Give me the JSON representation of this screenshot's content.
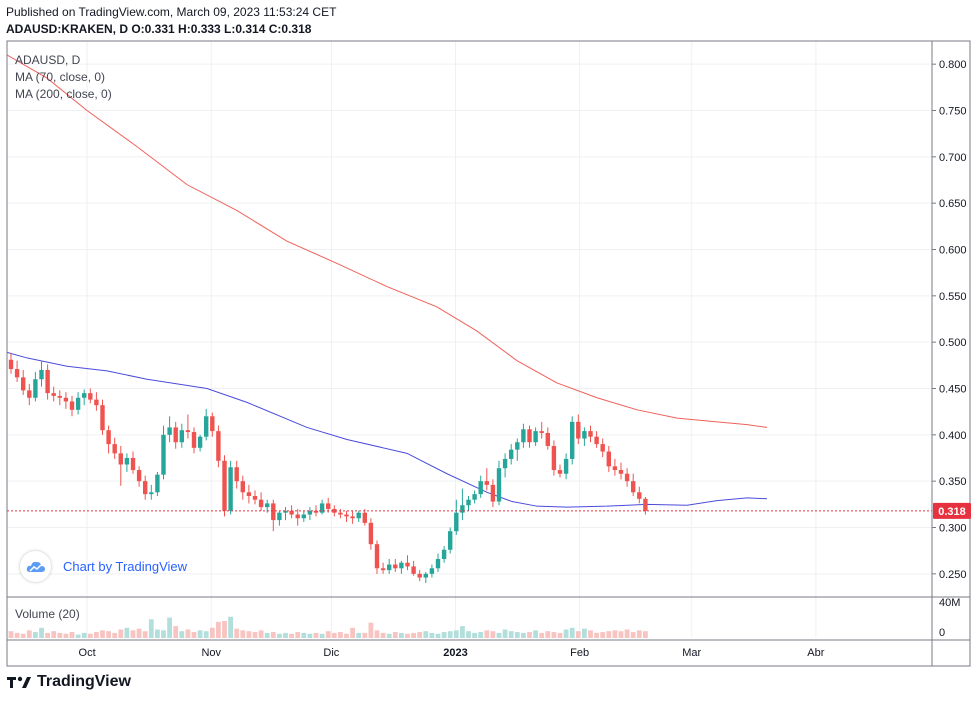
{
  "header": {
    "published": "Published on TradingView.com, March 09, 2023 11:53:24 CET",
    "ohlc": "ADAUSD:KRAKEN, D O:0.331 H:0.333 L:0.314 C:0.318"
  },
  "legend": {
    "symbol": "ADAUSD, D",
    "ma70": "MA (70, close, 0)",
    "ma200": "MA (200, close, 0)"
  },
  "badge": {
    "text": "Chart by TradingView",
    "icon": "tradingview-cloud-icon"
  },
  "volume": {
    "label": "Volume (20)"
  },
  "footer": {
    "brand": "TradingView",
    "icon": "tradingview-logo-icon"
  },
  "colors": {
    "up": "#26a69a",
    "down": "#ef5350",
    "ma70": "#4b4bdc",
    "ma200": "#f0605a",
    "last": "#e8313f"
  },
  "chart_data": {
    "type": "candlestick",
    "symbol": "ADAUSD",
    "price_axis": {
      "min": 0.225,
      "max": 0.825,
      "ticks": [
        "0.250",
        "0.300",
        "0.350",
        "0.400",
        "0.450",
        "0.500",
        "0.550",
        "0.600",
        "0.650",
        "0.700",
        "0.750",
        "0.800"
      ]
    },
    "time_axis": {
      "labels": [
        {
          "text": "Oct",
          "date": "2022-10-01"
        },
        {
          "text": "Nov",
          "date": "2022-11-01"
        },
        {
          "text": "Dic",
          "date": "2022-12-01"
        },
        {
          "text": "2023",
          "date": "2023-01-01"
        },
        {
          "text": "Feb",
          "date": "2023-02-01"
        },
        {
          "text": "Mar",
          "date": "2023-03-01"
        },
        {
          "text": "Abr",
          "date": "2023-04-01"
        }
      ],
      "start": "2022-09-11",
      "end": "2023-04-30"
    },
    "last_price": {
      "value": 0.318,
      "label": "0.318"
    },
    "volume_axis": {
      "ticks": [
        "40M",
        "0"
      ],
      "max": 40
    },
    "ohlc": [
      [
        0.481,
        0.488,
        0.466,
        0.471
      ],
      [
        0.471,
        0.48,
        0.457,
        0.462
      ],
      [
        0.462,
        0.47,
        0.443,
        0.448
      ],
      [
        0.448,
        0.455,
        0.432,
        0.44
      ],
      [
        0.44,
        0.468,
        0.436,
        0.46
      ],
      [
        0.46,
        0.48,
        0.452,
        0.47
      ],
      [
        0.47,
        0.476,
        0.438,
        0.445
      ],
      [
        0.445,
        0.452,
        0.436,
        0.442
      ],
      [
        0.442,
        0.448,
        0.432,
        0.44
      ],
      [
        0.44,
        0.446,
        0.428,
        0.436
      ],
      [
        0.436,
        0.442,
        0.42,
        0.427
      ],
      [
        0.427,
        0.446,
        0.422,
        0.44
      ],
      [
        0.44,
        0.449,
        0.432,
        0.445
      ],
      [
        0.445,
        0.45,
        0.434,
        0.438
      ],
      [
        0.438,
        0.446,
        0.426,
        0.432
      ],
      [
        0.432,
        0.438,
        0.4,
        0.405
      ],
      [
        0.405,
        0.41,
        0.38,
        0.39
      ],
      [
        0.39,
        0.397,
        0.374,
        0.38
      ],
      [
        0.38,
        0.388,
        0.345,
        0.368
      ],
      [
        0.368,
        0.38,
        0.36,
        0.375
      ],
      [
        0.375,
        0.382,
        0.358,
        0.362
      ],
      [
        0.362,
        0.366,
        0.344,
        0.35
      ],
      [
        0.35,
        0.356,
        0.33,
        0.336
      ],
      [
        0.336,
        0.346,
        0.33,
        0.338
      ],
      [
        0.338,
        0.36,
        0.334,
        0.357
      ],
      [
        0.357,
        0.41,
        0.352,
        0.4
      ],
      [
        0.4,
        0.42,
        0.392,
        0.408
      ],
      [
        0.408,
        0.414,
        0.385,
        0.392
      ],
      [
        0.392,
        0.412,
        0.386,
        0.405
      ],
      [
        0.405,
        0.422,
        0.396,
        0.403
      ],
      [
        0.403,
        0.408,
        0.38,
        0.386
      ],
      [
        0.386,
        0.4,
        0.382,
        0.398
      ],
      [
        0.398,
        0.428,
        0.394,
        0.42
      ],
      [
        0.42,
        0.424,
        0.398,
        0.404
      ],
      [
        0.404,
        0.41,
        0.365,
        0.372
      ],
      [
        0.372,
        0.378,
        0.312,
        0.318
      ],
      [
        0.318,
        0.372,
        0.314,
        0.365
      ],
      [
        0.365,
        0.372,
        0.342,
        0.35
      ],
      [
        0.35,
        0.356,
        0.33,
        0.338
      ],
      [
        0.338,
        0.346,
        0.326,
        0.334
      ],
      [
        0.334,
        0.34,
        0.325,
        0.33
      ],
      [
        0.33,
        0.338,
        0.318,
        0.322
      ],
      [
        0.322,
        0.33,
        0.316,
        0.326
      ],
      [
        0.326,
        0.33,
        0.296,
        0.308
      ],
      [
        0.308,
        0.318,
        0.302,
        0.316
      ],
      [
        0.316,
        0.322,
        0.308,
        0.318
      ],
      [
        0.318,
        0.324,
        0.31,
        0.314
      ],
      [
        0.314,
        0.32,
        0.302,
        0.31
      ],
      [
        0.31,
        0.318,
        0.306,
        0.314
      ],
      [
        0.314,
        0.322,
        0.308,
        0.318
      ],
      [
        0.318,
        0.324,
        0.312,
        0.316
      ],
      [
        0.316,
        0.33,
        0.314,
        0.326
      ],
      [
        0.326,
        0.332,
        0.316,
        0.32
      ],
      [
        0.32,
        0.324,
        0.312,
        0.316
      ],
      [
        0.316,
        0.32,
        0.31,
        0.314
      ],
      [
        0.314,
        0.318,
        0.306,
        0.312
      ],
      [
        0.312,
        0.318,
        0.304,
        0.31
      ],
      [
        0.31,
        0.318,
        0.306,
        0.316
      ],
      [
        0.316,
        0.32,
        0.302,
        0.305
      ],
      [
        0.305,
        0.31,
        0.276,
        0.282
      ],
      [
        0.282,
        0.286,
        0.25,
        0.256
      ],
      [
        0.256,
        0.262,
        0.25,
        0.254
      ],
      [
        0.254,
        0.266,
        0.25,
        0.26
      ],
      [
        0.26,
        0.266,
        0.252,
        0.256
      ],
      [
        0.256,
        0.264,
        0.25,
        0.262
      ],
      [
        0.262,
        0.27,
        0.254,
        0.258
      ],
      [
        0.258,
        0.264,
        0.248,
        0.25
      ],
      [
        0.25,
        0.254,
        0.242,
        0.246
      ],
      [
        0.246,
        0.252,
        0.24,
        0.25
      ],
      [
        0.25,
        0.26,
        0.246,
        0.256
      ],
      [
        0.256,
        0.272,
        0.252,
        0.266
      ],
      [
        0.266,
        0.28,
        0.262,
        0.276
      ],
      [
        0.276,
        0.3,
        0.272,
        0.296
      ],
      [
        0.296,
        0.33,
        0.292,
        0.316
      ],
      [
        0.316,
        0.342,
        0.308,
        0.324
      ],
      [
        0.324,
        0.334,
        0.318,
        0.33
      ],
      [
        0.33,
        0.34,
        0.326,
        0.336
      ],
      [
        0.336,
        0.356,
        0.332,
        0.35
      ],
      [
        0.35,
        0.364,
        0.34,
        0.346
      ],
      [
        0.346,
        0.352,
        0.322,
        0.328
      ],
      [
        0.328,
        0.372,
        0.324,
        0.364
      ],
      [
        0.364,
        0.38,
        0.354,
        0.374
      ],
      [
        0.374,
        0.39,
        0.368,
        0.384
      ],
      [
        0.384,
        0.396,
        0.372,
        0.392
      ],
      [
        0.392,
        0.412,
        0.386,
        0.406
      ],
      [
        0.406,
        0.41,
        0.386,
        0.392
      ],
      [
        0.392,
        0.408,
        0.388,
        0.404
      ],
      [
        0.404,
        0.414,
        0.396,
        0.402
      ],
      [
        0.402,
        0.408,
        0.384,
        0.388
      ],
      [
        0.388,
        0.394,
        0.356,
        0.362
      ],
      [
        0.362,
        0.368,
        0.354,
        0.358
      ],
      [
        0.358,
        0.38,
        0.352,
        0.374
      ],
      [
        0.374,
        0.42,
        0.368,
        0.414
      ],
      [
        0.414,
        0.422,
        0.39,
        0.396
      ],
      [
        0.396,
        0.408,
        0.388,
        0.404
      ],
      [
        0.404,
        0.41,
        0.392,
        0.398
      ],
      [
        0.398,
        0.404,
        0.386,
        0.39
      ],
      [
        0.39,
        0.396,
        0.376,
        0.382
      ],
      [
        0.382,
        0.388,
        0.36,
        0.366
      ],
      [
        0.366,
        0.374,
        0.356,
        0.362
      ],
      [
        0.362,
        0.37,
        0.352,
        0.358
      ],
      [
        0.358,
        0.364,
        0.344,
        0.35
      ],
      [
        0.35,
        0.358,
        0.334,
        0.338
      ],
      [
        0.338,
        0.344,
        0.326,
        0.331
      ],
      [
        0.331,
        0.333,
        0.314,
        0.318
      ]
    ],
    "volume": [
      8,
      6,
      5,
      9,
      7,
      12,
      6,
      8,
      6,
      5,
      7,
      4,
      6,
      5,
      7,
      9,
      8,
      6,
      10,
      12,
      9,
      11,
      8,
      22,
      10,
      9,
      24,
      14,
      8,
      10,
      7,
      9,
      8,
      12,
      19,
      20,
      25,
      11,
      9,
      8,
      7,
      9,
      6,
      7,
      5,
      6,
      5,
      7,
      6,
      5,
      6,
      5,
      8,
      6,
      7,
      5,
      12,
      6,
      6,
      18,
      9,
      6,
      5,
      7,
      6,
      5,
      6,
      7,
      8,
      6,
      5,
      7,
      8,
      9,
      14,
      8,
      6,
      7,
      9,
      8,
      6,
      10,
      8,
      7,
      6,
      7,
      9,
      6,
      8,
      7,
      6,
      10,
      12,
      8,
      11,
      9,
      6,
      7,
      8,
      9,
      8,
      10,
      7,
      9,
      8
    ],
    "ma70": [
      [
        0,
        0.489
      ],
      [
        20,
        0.483
      ],
      [
        60,
        0.474
      ],
      [
        100,
        0.469
      ],
      [
        140,
        0.46
      ],
      [
        200,
        0.45
      ],
      [
        240,
        0.435
      ],
      [
        300,
        0.408
      ],
      [
        340,
        0.395
      ],
      [
        400,
        0.38
      ],
      [
        440,
        0.358
      ],
      [
        480,
        0.338
      ],
      [
        505,
        0.328
      ],
      [
        530,
        0.323
      ],
      [
        560,
        0.322
      ],
      [
        600,
        0.323
      ],
      [
        640,
        0.325
      ],
      [
        680,
        0.324
      ],
      [
        710,
        0.329
      ],
      [
        740,
        0.332
      ],
      [
        760,
        0.331
      ]
    ],
    "ma200": [
      [
        0,
        0.81
      ],
      [
        40,
        0.785
      ],
      [
        80,
        0.75
      ],
      [
        130,
        0.711
      ],
      [
        180,
        0.67
      ],
      [
        230,
        0.642
      ],
      [
        280,
        0.609
      ],
      [
        330,
        0.585
      ],
      [
        380,
        0.56
      ],
      [
        430,
        0.538
      ],
      [
        470,
        0.512
      ],
      [
        510,
        0.48
      ],
      [
        550,
        0.456
      ],
      [
        590,
        0.44
      ],
      [
        630,
        0.427
      ],
      [
        670,
        0.418
      ],
      [
        710,
        0.414
      ],
      [
        740,
        0.411
      ],
      [
        760,
        0.408
      ]
    ]
  }
}
